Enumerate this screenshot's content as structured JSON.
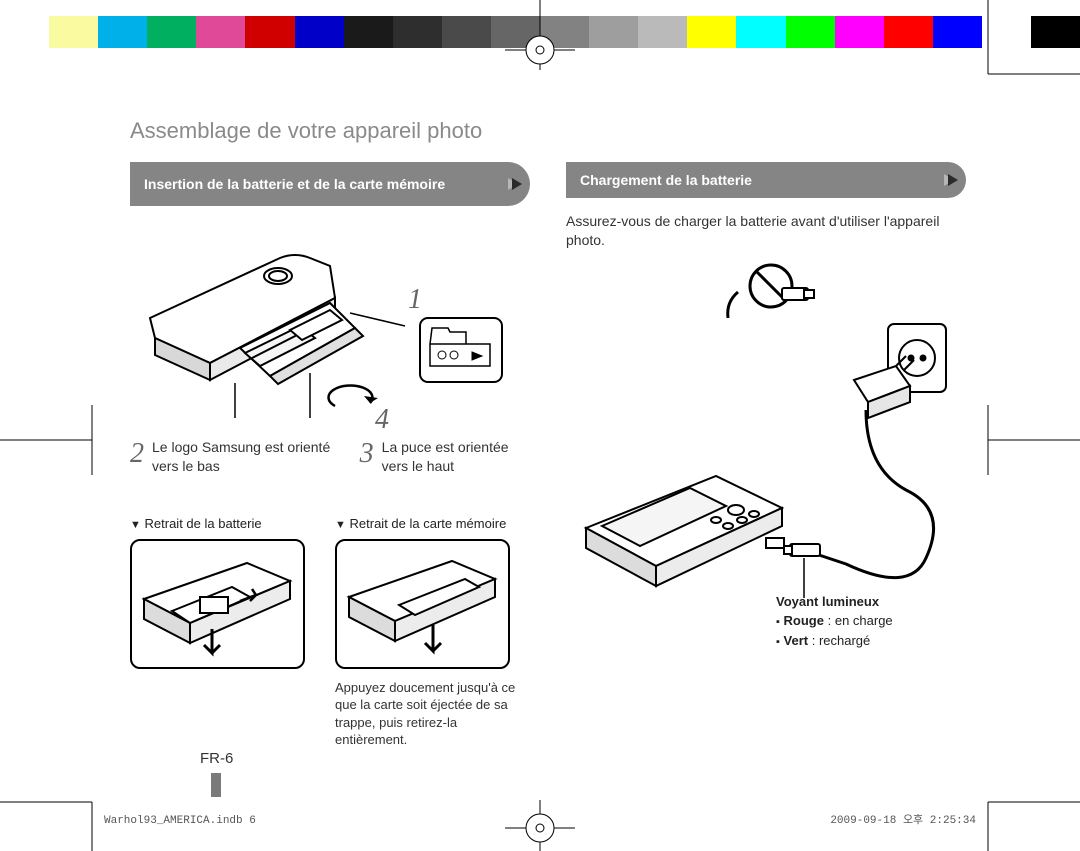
{
  "color_bar": [
    "#ffffff",
    "#fafaa0",
    "#00b0e8",
    "#00b060",
    "#e04898",
    "#d00000",
    "#0000c8",
    "#1a1a1a",
    "#2e2e2e",
    "#4a4a4a",
    "#666666",
    "#828282",
    "#9e9e9e",
    "#bababa",
    "#ffff00",
    "#00ffff",
    "#00ff00",
    "#ff00ff",
    "#ff0000",
    "#0000ff",
    "#ffffff",
    "#000000"
  ],
  "title": "Assemblage de votre appareil photo",
  "left": {
    "banner": "Insertion de la batterie et de la carte mémoire",
    "step1": "1",
    "step2_num": "2",
    "step2_text": "Le logo Samsung est orienté vers le bas",
    "step3_num": "3",
    "step3_text": "La puce est orientée vers le haut",
    "step4": "4",
    "sub_battery": "Retrait de la batterie",
    "sub_card": "Retrait de la carte mémoire",
    "card_caption": "Appuyez doucement jusqu'à ce que la carte soit éjectée de sa trappe, puis retirez-la entièrement."
  },
  "right": {
    "banner": "Chargement de la batterie",
    "intro": "Assurez-vous de charger la batterie avant d'utiliser l'appareil photo.",
    "legend_title": "Voyant lumineux",
    "legend_red_label": "Rouge",
    "legend_red_text": ": en charge",
    "legend_green_label": "Vert",
    "legend_green_text": ": rechargé"
  },
  "page_number": "FR-6",
  "footer_left": "Warhol93_AMERICA.indb   6",
  "footer_right": "2009-09-18   오후 2:25:34"
}
